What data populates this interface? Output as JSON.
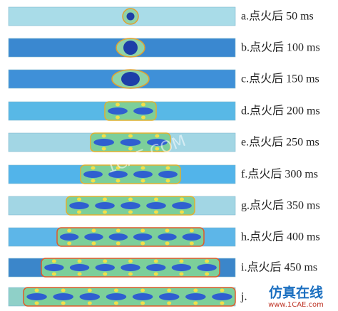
{
  "panels": [
    {
      "label": "a.点火后 50 ms"
    },
    {
      "label": "b.点火后 100 ms"
    },
    {
      "label": "c.点火后 150 ms"
    },
    {
      "label": "d.点火后 200 ms"
    },
    {
      "label": "e.点火后 250 ms"
    },
    {
      "label": "f.点火后 300 ms"
    },
    {
      "label": "g.点火后 350 ms"
    },
    {
      "label": "h.点火后 400 ms"
    },
    {
      "label": "i.点火后 450 ms"
    },
    {
      "label": "j."
    }
  ],
  "watermark": {
    "center": "1CAE.COM",
    "brand": "仿真在线",
    "url": "www.1CAE.com"
  }
}
